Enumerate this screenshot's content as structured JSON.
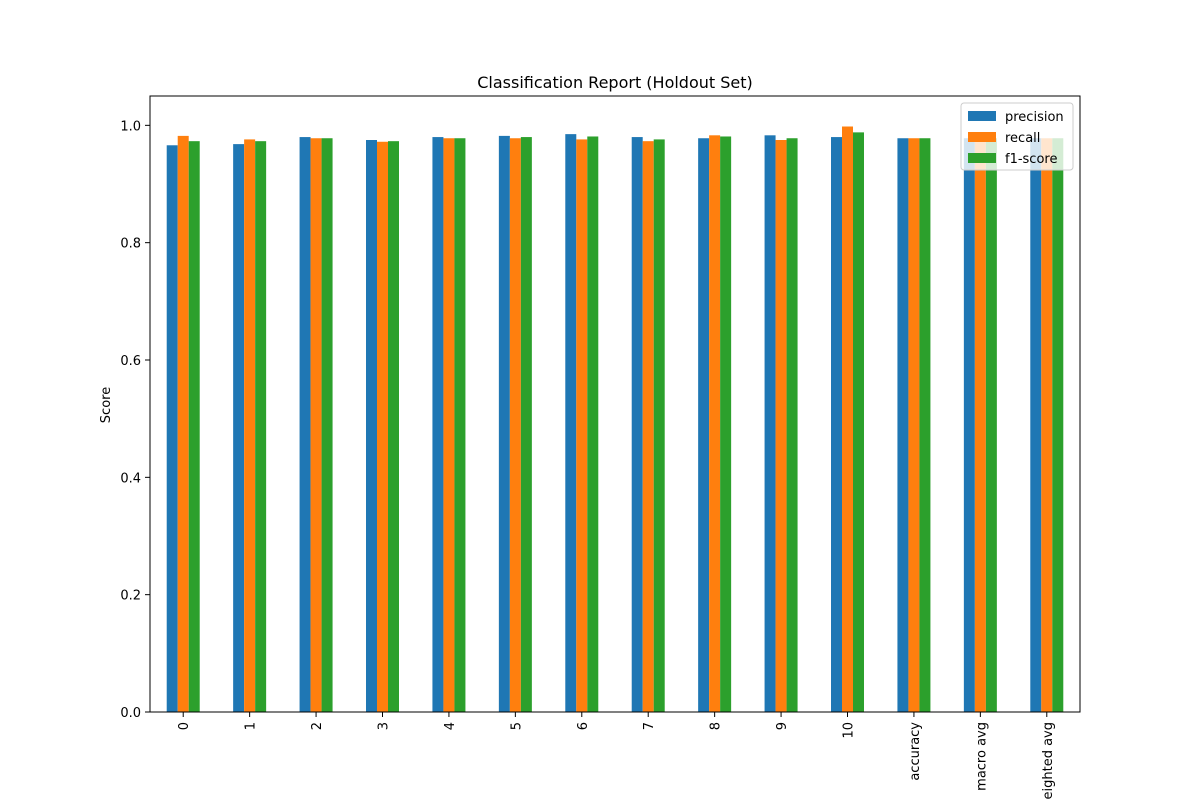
{
  "chart_data": {
    "type": "bar",
    "title": "Classification Report (Holdout Set)",
    "xlabel": "",
    "ylabel": "Score",
    "ylim": [
      0,
      1.05
    ],
    "yticks": [
      0.0,
      0.2,
      0.4,
      0.6,
      0.8,
      1.0
    ],
    "ytick_labels": [
      "0.0",
      "0.2",
      "0.4",
      "0.6",
      "0.8",
      "1.0"
    ],
    "grid": false,
    "legend_position": "top-right",
    "categories": [
      "0",
      "1",
      "2",
      "3",
      "4",
      "5",
      "6",
      "7",
      "8",
      "9",
      "10",
      "accuracy",
      "macro avg",
      "weighted avg"
    ],
    "series": [
      {
        "name": "precision",
        "color": "#1f77b4",
        "values": [
          0.966,
          0.968,
          0.98,
          0.975,
          0.98,
          0.982,
          0.985,
          0.98,
          0.978,
          0.983,
          0.98,
          0.978,
          0.978,
          0.978
        ]
      },
      {
        "name": "recall",
        "color": "#ff7f0e",
        "values": [
          0.982,
          0.976,
          0.978,
          0.972,
          0.978,
          0.978,
          0.976,
          0.973,
          0.983,
          0.975,
          0.998,
          0.978,
          0.978,
          0.978
        ]
      },
      {
        "name": "f1-score",
        "color": "#2ca02c",
        "values": [
          0.973,
          0.973,
          0.978,
          0.973,
          0.978,
          0.98,
          0.981,
          0.976,
          0.981,
          0.978,
          0.988,
          0.978,
          0.978,
          0.978
        ]
      }
    ]
  }
}
